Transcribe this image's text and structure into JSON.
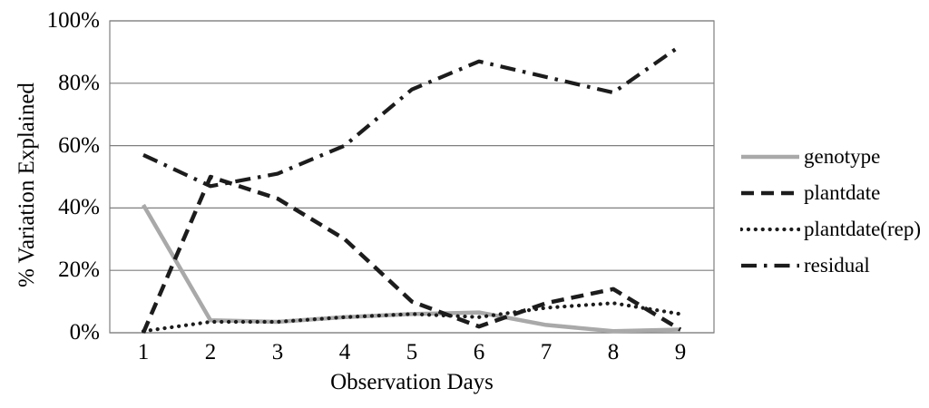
{
  "chart_data": {
    "type": "line",
    "xlabel": "Observation Days",
    "ylabel": "% Variation Explained",
    "x": [
      1,
      2,
      3,
      4,
      5,
      6,
      7,
      8,
      9
    ],
    "x_axis_type": "category",
    "ylim": [
      0,
      100
    ],
    "ytick_step": 20,
    "ytick_labels_top_to_bottom": [
      "100%",
      "80%",
      "60%",
      "40%",
      "20%",
      "0%"
    ],
    "grid": "horizontal",
    "legend_position": "right",
    "series": [
      {
        "name": "genotype",
        "color": "#a9a9a9",
        "style": "solid",
        "values": [
          41,
          4,
          3.5,
          5,
          6,
          6.5,
          2.5,
          0.5,
          1
        ]
      },
      {
        "name": "plantdate",
        "color": "#1c1c1c",
        "style": "dashed",
        "values": [
          0,
          50,
          43,
          30,
          10,
          2,
          9.5,
          14,
          1
        ]
      },
      {
        "name": "plantdate(rep)",
        "color": "#1c1c1c",
        "style": "dotted",
        "values": [
          0.5,
          3.5,
          3.5,
          5,
          6,
          5,
          8,
          9.5,
          6
        ]
      },
      {
        "name": "residual",
        "color": "#1c1c1c",
        "style": "dashdot",
        "values": [
          57,
          47,
          51,
          60,
          78,
          87,
          82,
          77,
          92
        ]
      }
    ]
  },
  "colors": {
    "background": "#ffffff",
    "gridline": "#7f7f7f",
    "plot_border": "#7f7f7f",
    "text": "#000000"
  }
}
